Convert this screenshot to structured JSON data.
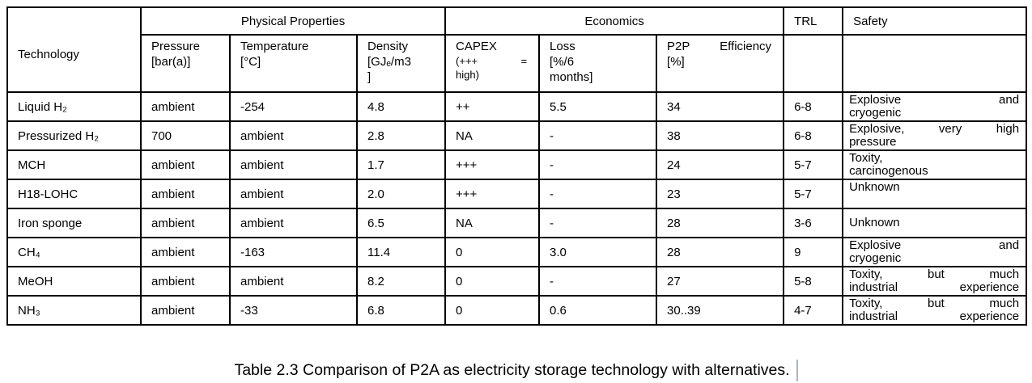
{
  "table": {
    "header": {
      "technology": "Technology",
      "physical_properties": "Physical Properties",
      "economics": "Economics",
      "trl": "TRL",
      "safety": "Safety",
      "sub": {
        "pressure": {
          "lines": [
            {
              "text": "Pressure"
            },
            {
              "text": "[bar(a)]"
            }
          ]
        },
        "temperature": {
          "lines": [
            {
              "text": "Temperature"
            },
            {
              "text": "[°C]"
            }
          ]
        },
        "density": {
          "lines": [
            {
              "text": "Density"
            },
            {
              "text": "[GJₑ/m3"
            },
            {
              "text": "]"
            }
          ]
        },
        "capex": {
          "lines": [
            {
              "text": "CAPEX"
            },
            {
              "text": "(+++ =",
              "stretch": true,
              "small": true
            },
            {
              "text": "high)",
              "small": true
            }
          ]
        },
        "loss": {
          "lines": [
            {
              "text": "Loss"
            },
            {
              "text": "[%/6"
            },
            {
              "text": "months]"
            }
          ]
        },
        "p2p": {
          "lines": [
            {
              "text": "P2P Efficiency",
              "stretch": true
            },
            {
              "text": "[%]"
            }
          ]
        }
      }
    },
    "rows": [
      {
        "tech": "Liquid H₂",
        "pressure": "ambient",
        "temperature": "-254",
        "density": "4.8",
        "capex": "++",
        "loss": "5.5",
        "p2p": "34",
        "trl": "6-8",
        "safety": {
          "valign": "top",
          "lines": [
            {
              "text": "Explosive and",
              "stretch": true
            },
            {
              "text": "cryogenic"
            }
          ]
        }
      },
      {
        "tech": "Pressurized H₂",
        "pressure": "700",
        "temperature": "ambient",
        "density": "2.8",
        "capex": "NA",
        "loss": "-",
        "p2p": "38",
        "trl": "6-8",
        "safety": {
          "valign": "top",
          "lines": [
            {
              "text": "Explosive, very high",
              "stretch": true
            },
            {
              "text": "pressure"
            }
          ]
        }
      },
      {
        "tech": "MCH",
        "pressure": "ambient",
        "temperature": "ambient",
        "density": "1.7",
        "capex": "+++",
        "loss": "-",
        "p2p": "24",
        "trl": "5-7",
        "safety": {
          "valign": "top",
          "lines": [
            {
              "text": "Toxity,"
            },
            {
              "text": "carcinogenous"
            }
          ]
        }
      },
      {
        "tech": "H18-LOHC",
        "pressure": "ambient",
        "temperature": "ambient",
        "density": "2.0",
        "capex": "+++",
        "loss": "-",
        "p2p": "23",
        "trl": "5-7",
        "safety": {
          "valign": "top",
          "lines": [
            {
              "text": "Unknown"
            }
          ]
        }
      },
      {
        "tech": "Iron sponge",
        "pressure": "ambient",
        "temperature": "ambient",
        "density": "6.5",
        "capex": "NA",
        "loss": "-",
        "p2p": "28",
        "trl": "3-6",
        "safety": {
          "valign": "middle",
          "lines": [
            {
              "text": "Unknown"
            }
          ]
        }
      },
      {
        "tech": "CH₄",
        "pressure": "ambient",
        "temperature": "-163",
        "density": "11.4",
        "capex": "0",
        "loss": "3.0",
        "p2p": "28",
        "trl": "9",
        "safety": {
          "valign": "top",
          "lines": [
            {
              "text": "Explosive and",
              "stretch": true
            },
            {
              "text": "cryogenic"
            }
          ]
        }
      },
      {
        "tech": "MeOH",
        "pressure": "ambient",
        "temperature": "ambient",
        "density": "8.2",
        "capex": "0",
        "loss": "-",
        "p2p": "27",
        "trl": "5-8",
        "safety": {
          "valign": "top",
          "lines": [
            {
              "text": "Toxity, but much",
              "stretch": true
            },
            {
              "text": "industrial experience",
              "stretch": true
            }
          ]
        }
      },
      {
        "tech": "NH₃",
        "pressure": "ambient",
        "temperature": "-33",
        "density": "6.8",
        "capex": "0",
        "loss": "0.6",
        "p2p": "30..39",
        "trl": "4-7",
        "safety": {
          "valign": "top",
          "lines": [
            {
              "text": "Toxity, but much",
              "stretch": true
            },
            {
              "text": "industrial experience",
              "stretch": true
            }
          ]
        }
      }
    ]
  },
  "caption": {
    "text": "Table 2.3 Comparison of P2A as electricity storage technology with alternatives."
  },
  "colors": {
    "background": "#ffffff",
    "text": "#000000",
    "table_border": "#000000",
    "text_cursor": "#a3b8c8"
  }
}
